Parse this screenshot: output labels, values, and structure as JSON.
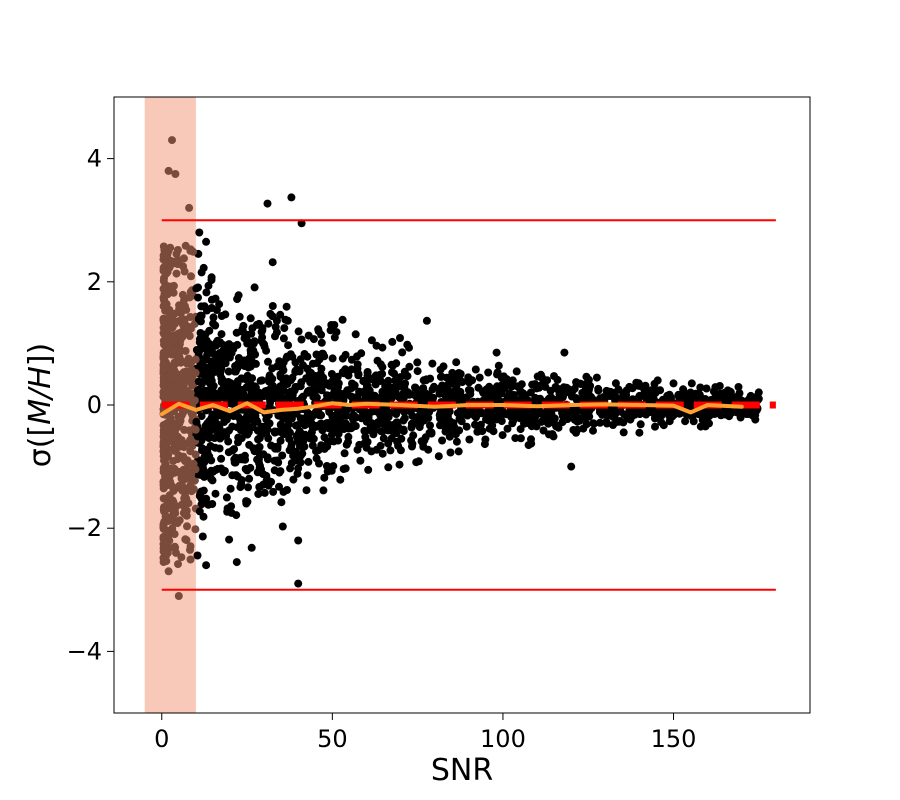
{
  "chart_data": {
    "type": "scatter",
    "title": "",
    "xlabel": "SNR",
    "ylabel_prefix": "σ([",
    "ylabel_italic": "M/H",
    "ylabel_suffix": "])",
    "xlim": [
      -14,
      190
    ],
    "ylim": [
      -5,
      5
    ],
    "xticks": [
      0,
      50,
      100,
      150
    ],
    "yticks": [
      -4,
      -2,
      0,
      2,
      4
    ],
    "ytick_labels": [
      "−4",
      "−2",
      "0",
      "2",
      "4"
    ],
    "grid": false,
    "legend": "none",
    "low_snr_band": {
      "x0": -5,
      "x1": 10,
      "color": "#f8c8b8"
    },
    "reference_lines": [
      {
        "y": 3,
        "x0": 0,
        "x1": 180,
        "color": "#ff0000",
        "style": "solid"
      },
      {
        "y": -3,
        "x0": 0,
        "x1": 180,
        "color": "#ff0000",
        "style": "solid"
      },
      {
        "y": 0,
        "x0": 0,
        "x1": 180,
        "color": "#ff0000",
        "style": "dashed-thick"
      }
    ],
    "scatter_color": "#000000",
    "scatter_color_low_snr": "#7a4a3a",
    "scatter_envelope": [
      {
        "x": 2,
        "sigma": 1.6
      },
      {
        "x": 10,
        "sigma": 1.1
      },
      {
        "x": 20,
        "sigma": 0.85
      },
      {
        "x": 40,
        "sigma": 0.6
      },
      {
        "x": 60,
        "sigma": 0.45
      },
      {
        "x": 80,
        "sigma": 0.35
      },
      {
        "x": 100,
        "sigma": 0.28
      },
      {
        "x": 120,
        "sigma": 0.22
      },
      {
        "x": 150,
        "sigma": 0.15
      },
      {
        "x": 175,
        "sigma": 0.1
      }
    ],
    "notable_points": [
      {
        "x": 3,
        "y": 4.3
      },
      {
        "x": 2,
        "y": 3.8
      },
      {
        "x": 4,
        "y": 3.75
      },
      {
        "x": 31,
        "y": 3.27
      },
      {
        "x": 38,
        "y": 3.37
      },
      {
        "x": 41,
        "y": 2.95
      },
      {
        "x": 8,
        "y": 3.2
      },
      {
        "x": 11,
        "y": 2.8
      },
      {
        "x": 13,
        "y": 2.65
      },
      {
        "x": 5,
        "y": -3.1
      },
      {
        "x": 40,
        "y": -2.9
      },
      {
        "x": 13,
        "y": -2.6
      },
      {
        "x": 2,
        "y": -2.7
      },
      {
        "x": 22,
        "y": -2.55
      },
      {
        "x": 40,
        "y": -2.2
      },
      {
        "x": 120,
        "y": -1.0
      },
      {
        "x": 140,
        "y": -0.45
      },
      {
        "x": 158,
        "y": -0.35
      },
      {
        "x": 118,
        "y": 0.85
      },
      {
        "x": 150,
        "y": 0.35
      },
      {
        "x": 165,
        "y": 0.2
      }
    ],
    "series": [
      {
        "name": "",
        "color": "#ffa030",
        "x": [
          0,
          5,
          10,
          15,
          20,
          25,
          30,
          35,
          40,
          45,
          50,
          55,
          60,
          70,
          80,
          90,
          100,
          110,
          120,
          130,
          140,
          150,
          155,
          160,
          170
        ],
        "y": [
          -0.15,
          0.02,
          -0.08,
          0.0,
          -0.1,
          0.03,
          -0.12,
          -0.08,
          -0.06,
          -0.02,
          0.03,
          0.0,
          0.02,
          0.0,
          -0.03,
          0.0,
          0.0,
          -0.02,
          0.0,
          0.01,
          0.0,
          -0.01,
          -0.12,
          0.0,
          -0.03
        ]
      }
    ]
  }
}
